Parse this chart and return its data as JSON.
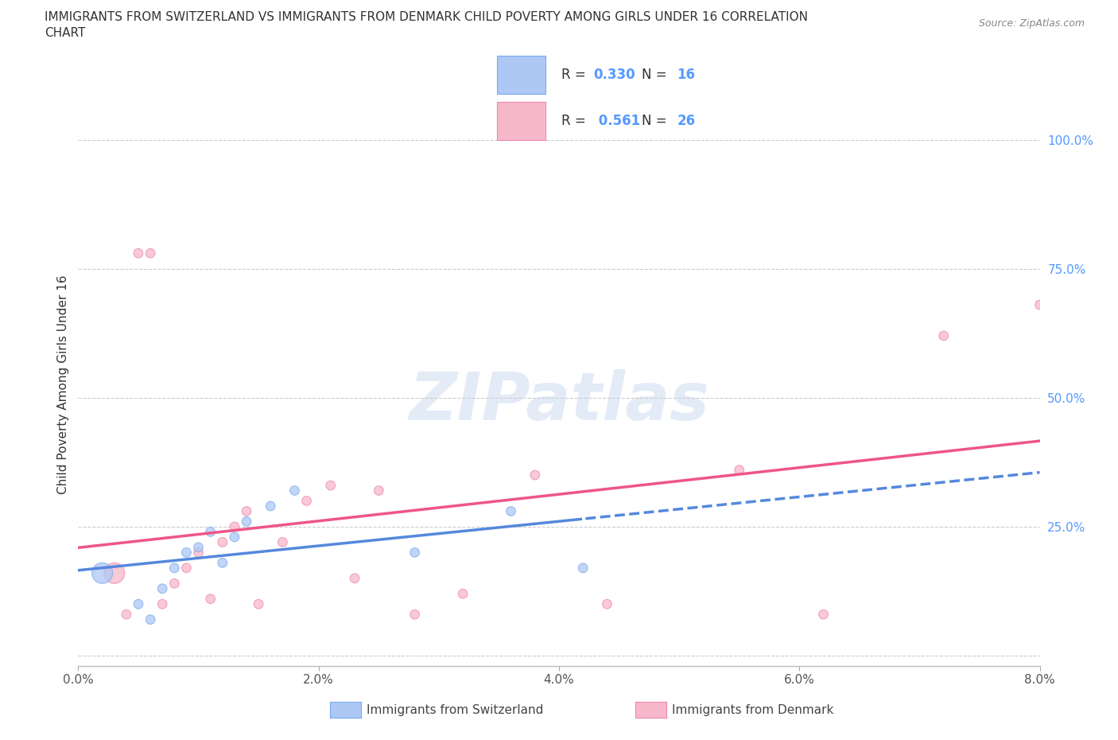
{
  "title": "IMMIGRANTS FROM SWITZERLAND VS IMMIGRANTS FROM DENMARK CHILD POVERTY AMONG GIRLS UNDER 16 CORRELATION\nCHART",
  "source": "Source: ZipAtlas.com",
  "ylabel": "Child Poverty Among Girls Under 16",
  "xlim": [
    0.0,
    0.08
  ],
  "ylim": [
    -0.02,
    1.07
  ],
  "xticks": [
    0.0,
    0.02,
    0.04,
    0.06,
    0.08
  ],
  "xticklabels": [
    "0.0%",
    "2.0%",
    "4.0%",
    "6.0%",
    "8.0%"
  ],
  "yticks": [
    0.0,
    0.25,
    0.5,
    0.75,
    1.0
  ],
  "yticklabels": [
    "",
    "25.0%",
    "50.0%",
    "75.0%",
    "100.0%"
  ],
  "swiss_color": "#adc8f5",
  "swiss_edge": "#7aaaee",
  "denmark_color": "#f8b8cc",
  "denmark_edge": "#ee88aa",
  "swiss_R": 0.33,
  "swiss_N": 16,
  "denmark_R": 0.561,
  "denmark_N": 26,
  "watermark": "ZIPatlas",
  "swiss_x": [
    0.002,
    0.005,
    0.006,
    0.007,
    0.008,
    0.009,
    0.01,
    0.011,
    0.012,
    0.013,
    0.014,
    0.016,
    0.018,
    0.028,
    0.036,
    0.042
  ],
  "swiss_y": [
    0.16,
    0.1,
    0.07,
    0.13,
    0.17,
    0.2,
    0.21,
    0.24,
    0.18,
    0.23,
    0.26,
    0.29,
    0.32,
    0.2,
    0.28,
    0.17
  ],
  "swiss_sizes": [
    350,
    70,
    70,
    70,
    70,
    70,
    70,
    70,
    70,
    70,
    70,
    70,
    70,
    70,
    70,
    70
  ],
  "denmark_x": [
    0.003,
    0.004,
    0.005,
    0.006,
    0.007,
    0.008,
    0.009,
    0.01,
    0.011,
    0.012,
    0.013,
    0.014,
    0.015,
    0.017,
    0.019,
    0.021,
    0.023,
    0.025,
    0.028,
    0.032,
    0.038,
    0.044,
    0.055,
    0.062,
    0.072,
    0.08
  ],
  "denmark_y": [
    0.16,
    0.08,
    0.78,
    0.78,
    0.1,
    0.14,
    0.17,
    0.2,
    0.11,
    0.22,
    0.25,
    0.28,
    0.1,
    0.22,
    0.3,
    0.33,
    0.15,
    0.32,
    0.08,
    0.12,
    0.35,
    0.1,
    0.36,
    0.08,
    0.62,
    0.68
  ],
  "denmark_sizes": [
    350,
    70,
    70,
    70,
    70,
    70,
    70,
    70,
    70,
    70,
    70,
    70,
    70,
    70,
    70,
    70,
    70,
    70,
    70,
    70,
    70,
    70,
    70,
    70,
    70,
    70
  ],
  "trend_color_swiss": "#5588dd",
  "trend_color_denmark": "#ee5588",
  "grid_color": "#cccccc",
  "legend_label_swiss": "Immigrants from Switzerland",
  "legend_label_denmark": "Immigrants from Denmark"
}
